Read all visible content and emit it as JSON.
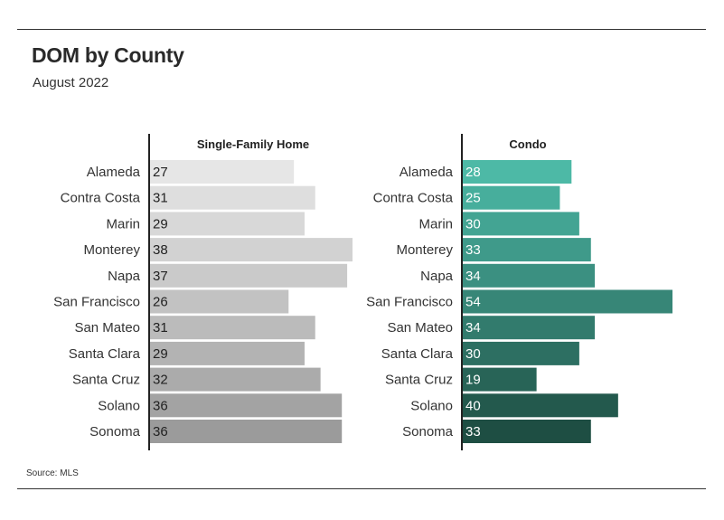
{
  "header": {
    "title": "DOM by County",
    "subtitle": "August 2022"
  },
  "footer": {
    "source": "Source: MLS"
  },
  "chart_data": [
    {
      "type": "bar",
      "orientation": "horizontal",
      "title": "Single-Family Home",
      "categories": [
        "Alameda",
        "Contra Costa",
        "Marin",
        "Monterey",
        "Napa",
        "San Francisco",
        "San Mateo",
        "Santa Clara",
        "Santa Cruz",
        "Solano",
        "Sonoma"
      ],
      "values": [
        27,
        31,
        29,
        38,
        37,
        26,
        31,
        29,
        32,
        36,
        36
      ],
      "colors": [
        "#e6e6e6",
        "#dedede",
        "#d8d8d8",
        "#d2d2d2",
        "#cacaca",
        "#c2c2c2",
        "#bbbbbb",
        "#b3b3b3",
        "#ababab",
        "#a3a3a3",
        "#9b9b9b"
      ],
      "value_label_color": "#222222",
      "xlim": [
        0,
        38
      ],
      "grid": false,
      "legend": "none"
    },
    {
      "type": "bar",
      "orientation": "horizontal",
      "title": "Condo",
      "categories": [
        "Alameda",
        "Contra Costa",
        "Marin",
        "Monterey",
        "Napa",
        "San Francisco",
        "San Mateo",
        "Santa Clara",
        "Santa Cruz",
        "Solano",
        "Sonoma"
      ],
      "values": [
        28,
        25,
        30,
        33,
        34,
        54,
        34,
        30,
        19,
        40,
        33
      ],
      "colors": [
        "#4db9a6",
        "#47ae9c",
        "#43a493",
        "#3f9a8a",
        "#3b9081",
        "#378677",
        "#327b6d",
        "#2d6f62",
        "#286457",
        "#23594d",
        "#1e4e43"
      ],
      "value_label_color": "#ffffff",
      "xlim": [
        0,
        54
      ],
      "grid": false,
      "legend": "none"
    }
  ]
}
